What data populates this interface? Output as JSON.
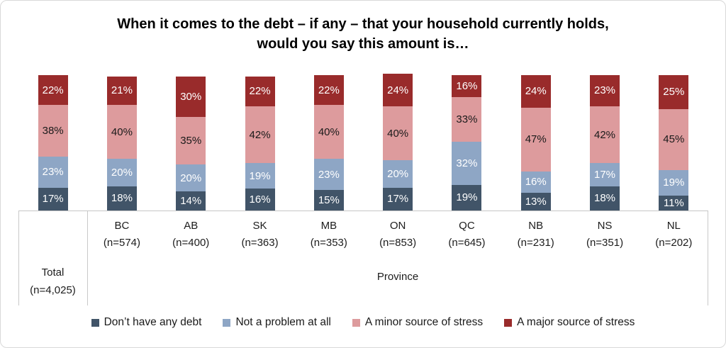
{
  "title": {
    "line1": "When it comes to the debt – if any – that your household currently holds,",
    "line2": "would you say this amount is…"
  },
  "chart_data": {
    "type": "bar",
    "subtype": "stacked-100",
    "unit": "%",
    "categories": [
      "Total",
      "BC",
      "AB",
      "SK",
      "MB",
      "ON",
      "QC",
      "NB",
      "NS",
      "NL"
    ],
    "sample_sizes": [
      "(n=4,025)",
      "(n=574)",
      "(n=400)",
      "(n=363)",
      "(n=353)",
      "(n=853)",
      "(n=645)",
      "(n=231)",
      "(n=351)",
      "(n=202)"
    ],
    "axis_group_labels": {
      "first": "Total",
      "first_sub": "(n=4,025)",
      "second": "Province"
    },
    "series": [
      {
        "name": "Don’t have any debt",
        "color": "#415468",
        "label_color": "#ffffff",
        "values": [
          17,
          18,
          14,
          16,
          15,
          17,
          19,
          13,
          18,
          11
        ]
      },
      {
        "name": "Not a problem at all",
        "color": "#8EA6C5",
        "label_color": "#ffffff",
        "values": [
          23,
          20,
          20,
          19,
          23,
          20,
          32,
          16,
          17,
          19
        ]
      },
      {
        "name": "A minor source of stress",
        "color": "#DD9B9D",
        "label_color": "#1a1a1a",
        "values": [
          38,
          40,
          35,
          42,
          40,
          40,
          33,
          47,
          42,
          45
        ]
      },
      {
        "name": "A major source of stress",
        "color": "#992B2B",
        "label_color": "#ffffff",
        "values": [
          22,
          21,
          30,
          22,
          22,
          24,
          16,
          24,
          23,
          25
        ]
      }
    ],
    "ylim": [
      0,
      100
    ],
    "grid": false,
    "legend_position": "bottom",
    "value_label_format": "{v}%",
    "axis_line_color": "#c9c9c9"
  }
}
